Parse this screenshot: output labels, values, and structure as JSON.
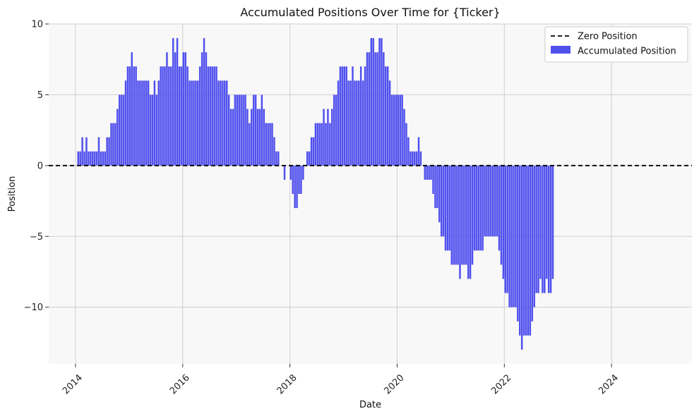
{
  "chart_data": {
    "type": "bar",
    "title": "Accumulated Positions Over Time for {Ticker}",
    "xlabel": "Date",
    "ylabel": "Position",
    "xlim": [
      2013.5,
      2025.5
    ],
    "ylim": [
      -14.0,
      10.0
    ],
    "xticks": [
      2014,
      2016,
      2018,
      2020,
      2022,
      2024
    ],
    "xtick_labels": [
      "2014",
      "2016",
      "2018",
      "2020",
      "2022",
      "2024"
    ],
    "yticks": [
      -10,
      -5,
      0,
      5,
      10
    ],
    "ytick_labels": [
      "−10",
      "−5",
      "0",
      "5",
      "10"
    ],
    "grid": true,
    "legend_position": "top-right",
    "legend": [
      "Zero Position",
      "Accumulated Position"
    ],
    "bar_color": "#5050ee",
    "zero_line_color": "#000000",
    "background_color": "#f8f8f8",
    "series": [
      {
        "name": "Accumulated Position",
        "x_start": 2014.05,
        "x_step": 0.0385,
        "values": [
          1,
          1,
          2,
          1,
          2,
          1,
          1,
          1,
          1,
          1,
          2,
          1,
          1,
          1,
          2,
          2,
          3,
          3,
          3,
          4,
          5,
          5,
          5,
          6,
          7,
          7,
          8,
          7,
          7,
          6,
          6,
          6,
          6,
          6,
          6,
          5,
          5,
          6,
          5,
          6,
          7,
          7,
          7,
          8,
          7,
          7,
          9,
          8,
          9,
          7,
          7,
          8,
          8,
          7,
          6,
          6,
          6,
          6,
          6,
          7,
          8,
          9,
          8,
          7,
          7,
          7,
          7,
          7,
          6,
          6,
          6,
          6,
          6,
          5,
          4,
          4,
          5,
          5,
          5,
          5,
          5,
          5,
          4,
          3,
          4,
          5,
          5,
          4,
          4,
          5,
          4,
          3,
          3,
          3,
          3,
          2,
          1,
          1,
          0,
          0,
          -1,
          0,
          0,
          -1,
          -2,
          -3,
          -3,
          -2,
          -2,
          -1,
          0,
          1,
          1,
          2,
          2,
          3,
          3,
          3,
          3,
          4,
          3,
          4,
          3,
          4,
          5,
          5,
          6,
          7,
          7,
          7,
          7,
          6,
          6,
          7,
          6,
          6,
          6,
          7,
          6,
          7,
          8,
          8,
          9,
          9,
          8,
          8,
          9,
          9,
          8,
          7,
          7,
          6,
          5,
          5,
          5,
          5,
          5,
          5,
          4,
          3,
          2,
          1,
          1,
          1,
          1,
          2,
          1,
          0,
          -1,
          -1,
          -1,
          -1,
          -2,
          -3,
          -3,
          -4,
          -5,
          -5,
          -6,
          -6,
          -6,
          -7,
          -7,
          -7,
          -7,
          -8,
          -7,
          -7,
          -7,
          -8,
          -8,
          -7,
          -6,
          -6,
          -6,
          -6,
          -6,
          -5,
          -5,
          -5,
          -5,
          -5,
          -5,
          -5,
          -6,
          -7,
          -8,
          -9,
          -9,
          -10,
          -10,
          -10,
          -10,
          -11,
          -12,
          -13,
          -12,
          -12,
          -12,
          -12,
          -11,
          -10,
          -9,
          -9,
          -8,
          -9,
          -9,
          -8,
          -9,
          -9,
          -8
        ]
      }
    ]
  }
}
